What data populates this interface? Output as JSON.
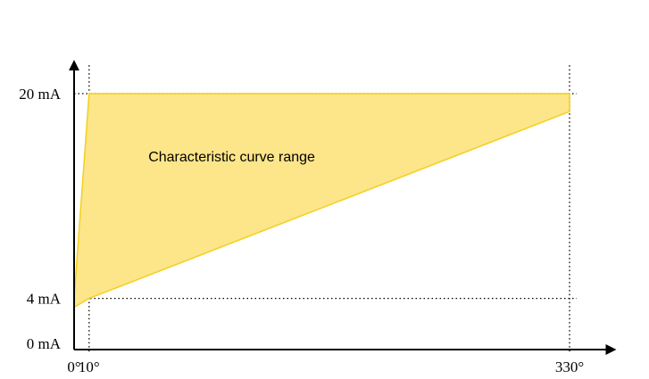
{
  "chart_data": {
    "type": "area",
    "title": "",
    "xlabel": "",
    "ylabel": "",
    "xlim": [
      0,
      360
    ],
    "ylim": [
      0,
      22.5
    ],
    "x_ticks": [
      {
        "value": 0,
        "label": "0°"
      },
      {
        "value": 10,
        "label": "10°"
      },
      {
        "value": 330,
        "label": "330°"
      }
    ],
    "y_ticks": [
      {
        "value": 0,
        "label": "0 mA"
      },
      {
        "value": 4,
        "label": "4 mA"
      },
      {
        "value": 20,
        "label": "20 mA"
      }
    ],
    "reference_lines": {
      "x": [
        10,
        330
      ],
      "y": [
        4,
        20
      ]
    },
    "region": {
      "fill": "#fde58a",
      "stroke": "#f4cf1e",
      "points": [
        [
          0,
          3.3
        ],
        [
          0,
          4
        ],
        [
          10,
          20
        ],
        [
          330,
          20
        ],
        [
          330,
          18.6
        ],
        [
          10,
          4
        ]
      ]
    },
    "annotation": {
      "text": "Characteristic curve range",
      "x": 105,
      "y": 14.7
    },
    "grid": false,
    "legend": "none"
  }
}
